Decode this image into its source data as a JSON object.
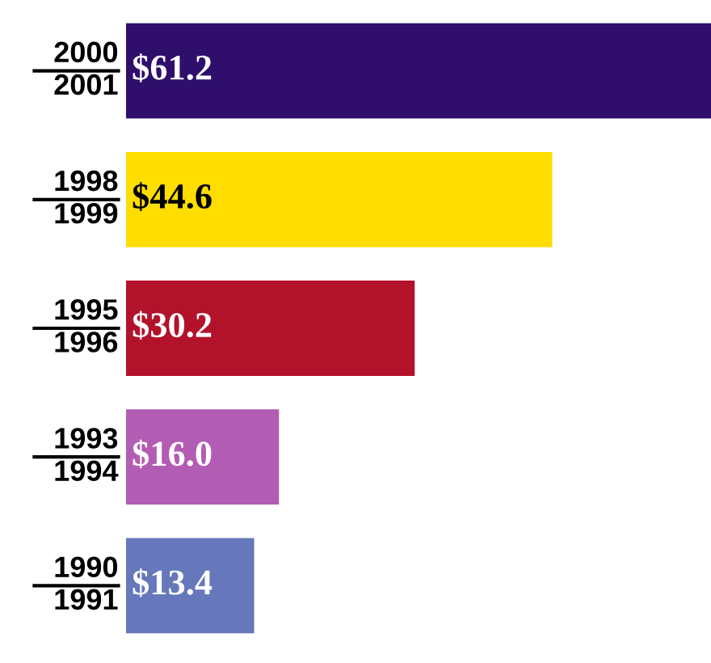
{
  "chart_data": {
    "type": "bar",
    "orientation": "horizontal",
    "categories": [
      "2000\n2001",
      "1998\n1999",
      "1995\n1996",
      "1993\n1994",
      "1990\n1991"
    ],
    "values": [
      61.2,
      44.6,
      30.2,
      16.0,
      13.4
    ],
    "colors": [
      "#2f0f6b",
      "#ffdd00",
      "#b3122b",
      "#b35cb3",
      "#6677bb"
    ],
    "value_labels": [
      "$61.2",
      "$44.6",
      "$30.2",
      "$16.0",
      "$13.4"
    ],
    "data_labels": true
  }
}
